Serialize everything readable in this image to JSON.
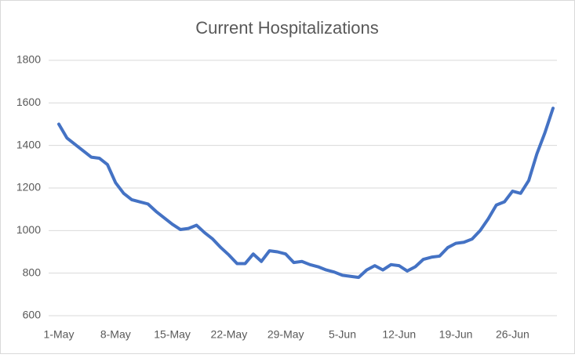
{
  "chart_data": {
    "type": "line",
    "title": "Current Hospitalizations",
    "categories": [
      "1-May",
      null,
      null,
      null,
      null,
      null,
      null,
      "8-May",
      null,
      null,
      null,
      null,
      null,
      null,
      "15-May",
      null,
      null,
      null,
      null,
      null,
      null,
      "22-May",
      null,
      null,
      null,
      null,
      null,
      null,
      "29-May",
      null,
      null,
      null,
      null,
      null,
      null,
      "5-Jun",
      null,
      null,
      null,
      null,
      null,
      null,
      "12-Jun",
      null,
      null,
      null,
      null,
      null,
      null,
      "19-Jun",
      null,
      null,
      null,
      null,
      null,
      null,
      "26-Jun",
      null,
      null,
      null,
      null,
      null
    ],
    "series": [
      {
        "color": "#4472c4",
        "values": [
          1500,
          1435,
          1405,
          1375,
          1345,
          1340,
          1310,
          1225,
          1175,
          1145,
          1135,
          1125,
          1090,
          1060,
          1030,
          1005,
          1010,
          1025,
          990,
          960,
          920,
          885,
          845,
          845,
          890,
          855,
          905,
          900,
          890,
          850,
          855,
          840,
          830,
          815,
          805,
          790,
          785,
          780,
          815,
          835,
          815,
          840,
          835,
          810,
          830,
          865,
          875,
          880,
          920,
          940,
          945,
          960,
          1000,
          1055,
          1120,
          1135,
          1185,
          1175,
          1235,
          1360,
          1460,
          1575
        ]
      }
    ],
    "ylim": [
      600,
      1800
    ],
    "yticks": [
      600,
      800,
      1000,
      1200,
      1400,
      1600,
      1800
    ],
    "grid": true
  }
}
